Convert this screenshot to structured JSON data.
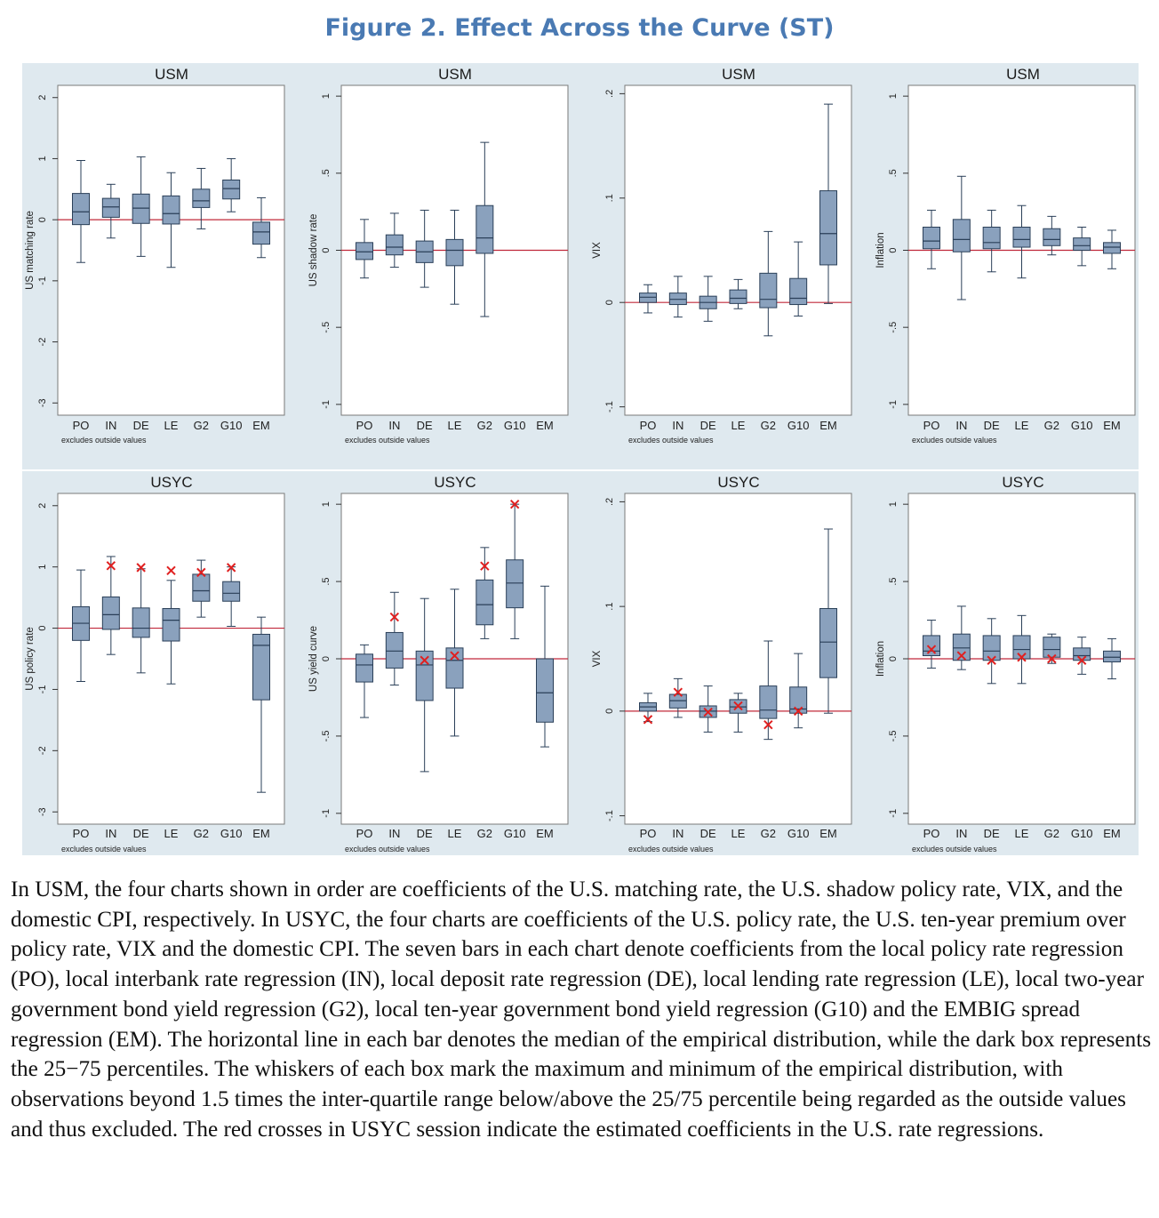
{
  "figure": {
    "title": "Figure 2. Effect Across the Curve (ST)",
    "caption": "In USM, the four charts shown in order are coefficients of the U.S. matching rate, the U.S. shadow policy rate, VIX, and the domestic CPI, respectively. In USYC, the four charts are coefficients of the U.S. policy rate, the U.S. ten-year premium over policy rate, VIX and the domestic CPI. The seven bars in each chart denote coefficients from the local policy rate regression (PO), local interbank rate regression (IN), local deposit rate regression (DE), local lending rate regression (LE), local two-year government bond yield regression (G2), local ten-year government bond yield regression (G10) and the EMBIG spread regression (EM). The horizontal line in each bar denotes the median of the empirical distribution, while the dark box represents the 25−75 percentiles. The whiskers of each box mark the maximum and minimum of the empirical distribution, with observations beyond 1.5 times the inter-quartile range below/above the 25/75 percentile being regarded as the outside values and thus excluded. The red crosses in USYC session indicate the estimated coefficients in the U.S. rate regressions."
  },
  "colors": {
    "panel_background": "#dfe9ef",
    "box_fill": "#8aa1bd",
    "box_stroke": "#2a3f58",
    "zero_line": "#c0283a",
    "marker": "#e02020",
    "title_color": "#4a7ab3"
  },
  "chart_data": [
    {
      "type": "box",
      "title": "USM",
      "ylabel": "US matching rate",
      "note": "excludes outside values",
      "categories": [
        "PO",
        "IN",
        "DE",
        "LE",
        "G2",
        "G10",
        "EM"
      ],
      "ylim": [
        -3.2,
        2.2
      ],
      "yticks": [
        -3,
        -2,
        -1,
        0,
        1,
        2
      ],
      "boxes": [
        {
          "min": -0.7,
          "q1": -0.08,
          "median": 0.13,
          "q3": 0.43,
          "max": 0.97
        },
        {
          "min": -0.3,
          "q1": 0.04,
          "median": 0.21,
          "q3": 0.35,
          "max": 0.58
        },
        {
          "min": -0.6,
          "q1": -0.06,
          "median": 0.19,
          "q3": 0.42,
          "max": 1.03
        },
        {
          "min": -0.78,
          "q1": -0.07,
          "median": 0.1,
          "q3": 0.39,
          "max": 0.77
        },
        {
          "min": -0.15,
          "q1": 0.2,
          "median": 0.31,
          "q3": 0.5,
          "max": 0.84
        },
        {
          "min": 0.13,
          "q1": 0.34,
          "median": 0.51,
          "q3": 0.65,
          "max": 1.0
        },
        {
          "min": -0.62,
          "q1": -0.4,
          "median": -0.2,
          "q3": -0.04,
          "max": 0.36
        }
      ]
    },
    {
      "type": "box",
      "title": "USM",
      "ylabel": "US shadow rate",
      "note": "excludes outside values",
      "categories": [
        "PO",
        "IN",
        "DE",
        "LE",
        "G2",
        "G10",
        "EM"
      ],
      "ylim": [
        -1.07,
        1.07
      ],
      "yticks": [
        -1,
        -0.5,
        0,
        0.5,
        1
      ],
      "boxes": [
        {
          "min": -0.18,
          "q1": -0.06,
          "median": -0.01,
          "q3": 0.05,
          "max": 0.2
        },
        {
          "min": -0.11,
          "q1": -0.03,
          "median": 0.02,
          "q3": 0.1,
          "max": 0.24
        },
        {
          "min": -0.24,
          "q1": -0.08,
          "median": -0.01,
          "q3": 0.06,
          "max": 0.26
        },
        {
          "min": -0.35,
          "q1": -0.1,
          "median": 0.0,
          "q3": 0.07,
          "max": 0.26
        },
        {
          "min": -0.43,
          "q1": -0.02,
          "median": 0.08,
          "q3": 0.29,
          "max": 0.7
        },
        null,
        null
      ]
    },
    {
      "type": "box",
      "title": "USM",
      "ylabel": "VIX",
      "note": "excludes outside values",
      "categories": [
        "PO",
        "IN",
        "DE",
        "LE",
        "G2",
        "G10",
        "EM"
      ],
      "ylim": [
        -0.108,
        0.208
      ],
      "yticks": [
        -0.1,
        0,
        0.1,
        0.2
      ],
      "boxes": [
        {
          "min": -0.01,
          "q1": 0.0,
          "median": 0.005,
          "q3": 0.009,
          "max": 0.017
        },
        {
          "min": -0.014,
          "q1": -0.002,
          "median": 0.003,
          "q3": 0.009,
          "max": 0.025
        },
        {
          "min": -0.018,
          "q1": -0.006,
          "median": 0.0,
          "q3": 0.006,
          "max": 0.025
        },
        {
          "min": -0.006,
          "q1": -0.001,
          "median": 0.004,
          "q3": 0.012,
          "max": 0.022
        },
        {
          "min": -0.032,
          "q1": -0.005,
          "median": 0.003,
          "q3": 0.028,
          "max": 0.068
        },
        {
          "min": -0.013,
          "q1": -0.002,
          "median": 0.004,
          "q3": 0.023,
          "max": 0.058
        },
        {
          "min": -0.001,
          "q1": 0.036,
          "median": 0.066,
          "q3": 0.107,
          "max": 0.19
        }
      ]
    },
    {
      "type": "box",
      "title": "USM",
      "ylabel": "Inflation",
      "note": "excludes outside values",
      "categories": [
        "PO",
        "IN",
        "DE",
        "LE",
        "G2",
        "G10",
        "EM"
      ],
      "ylim": [
        -1.07,
        1.07
      ],
      "yticks": [
        -1,
        -0.5,
        0,
        0.5,
        1
      ],
      "boxes": [
        {
          "min": -0.12,
          "q1": 0.01,
          "median": 0.06,
          "q3": 0.15,
          "max": 0.26
        },
        {
          "min": -0.32,
          "q1": -0.01,
          "median": 0.07,
          "q3": 0.2,
          "max": 0.48
        },
        {
          "min": -0.14,
          "q1": 0.01,
          "median": 0.05,
          "q3": 0.15,
          "max": 0.26
        },
        {
          "min": -0.18,
          "q1": 0.02,
          "median": 0.07,
          "q3": 0.15,
          "max": 0.29
        },
        {
          "min": -0.03,
          "q1": 0.03,
          "median": 0.07,
          "q3": 0.14,
          "max": 0.22
        },
        {
          "min": -0.1,
          "q1": 0.0,
          "median": 0.03,
          "q3": 0.08,
          "max": 0.15
        },
        {
          "min": -0.12,
          "q1": -0.02,
          "median": 0.02,
          "q3": 0.05,
          "max": 0.13
        }
      ]
    },
    {
      "type": "box",
      "title": "USYC",
      "ylabel": "US policy rate",
      "note": "excludes outside values",
      "categories": [
        "PO",
        "IN",
        "DE",
        "LE",
        "G2",
        "G10",
        "EM"
      ],
      "ylim": [
        -3.2,
        2.2
      ],
      "yticks": [
        -3,
        -2,
        -1,
        0,
        1,
        2
      ],
      "boxes": [
        {
          "min": -0.87,
          "q1": -0.2,
          "median": 0.08,
          "q3": 0.35,
          "max": 0.95,
          "estimate": null
        },
        {
          "min": -0.43,
          "q1": -0.02,
          "median": 0.22,
          "q3": 0.51,
          "max": 1.17,
          "estimate": 1.02
        },
        {
          "min": -0.73,
          "q1": -0.15,
          "median": 0.0,
          "q3": 0.33,
          "max": 0.97,
          "estimate": 0.99
        },
        {
          "min": -0.91,
          "q1": -0.21,
          "median": 0.13,
          "q3": 0.32,
          "max": 0.78,
          "estimate": 0.94
        },
        {
          "min": 0.18,
          "q1": 0.44,
          "median": 0.61,
          "q3": 0.88,
          "max": 1.11,
          "estimate": 0.91
        },
        {
          "min": 0.03,
          "q1": 0.44,
          "median": 0.57,
          "q3": 0.76,
          "max": 1.0,
          "estimate": 0.99
        },
        {
          "min": -2.68,
          "q1": -1.17,
          "median": -0.28,
          "q3": -0.1,
          "max": 0.18,
          "estimate": null
        }
      ]
    },
    {
      "type": "box",
      "title": "USYC",
      "ylabel": "US yield curve",
      "note": "excludes outside values",
      "categories": [
        "PO",
        "IN",
        "DE",
        "LE",
        "G2",
        "G10",
        "EM"
      ],
      "ylim": [
        -1.07,
        1.07
      ],
      "yticks": [
        -1,
        -0.5,
        0,
        0.5,
        1
      ],
      "boxes": [
        {
          "min": -0.38,
          "q1": -0.15,
          "median": -0.04,
          "q3": 0.03,
          "max": 0.09,
          "estimate": null
        },
        {
          "min": -0.17,
          "q1": -0.06,
          "median": 0.05,
          "q3": 0.17,
          "max": 0.43,
          "estimate": 0.27
        },
        {
          "min": -0.73,
          "q1": -0.27,
          "median": -0.04,
          "q3": 0.05,
          "max": 0.39,
          "estimate": -0.01
        },
        {
          "min": -0.5,
          "q1": -0.19,
          "median": -0.01,
          "q3": 0.07,
          "max": 0.45,
          "estimate": 0.02
        },
        {
          "min": 0.13,
          "q1": 0.22,
          "median": 0.35,
          "q3": 0.51,
          "max": 0.72,
          "estimate": 0.6
        },
        {
          "min": 0.13,
          "q1": 0.33,
          "median": 0.49,
          "q3": 0.64,
          "max": 1.0,
          "estimate": 1.0
        },
        {
          "min": -0.57,
          "q1": -0.41,
          "median": -0.22,
          "q3": 0.0,
          "max": 0.47,
          "estimate": null
        }
      ]
    },
    {
      "type": "box",
      "title": "USYC",
      "ylabel": "VIX",
      "note": "excludes outside values",
      "categories": [
        "PO",
        "IN",
        "DE",
        "LE",
        "G2",
        "G10",
        "EM"
      ],
      "ylim": [
        -0.108,
        0.208
      ],
      "yticks": [
        -0.1,
        0,
        0.1,
        0.2
      ],
      "boxes": [
        {
          "min": -0.01,
          "q1": 0.0,
          "median": 0.004,
          "q3": 0.008,
          "max": 0.017,
          "estimate": -0.008
        },
        {
          "min": -0.006,
          "q1": 0.003,
          "median": 0.01,
          "q3": 0.016,
          "max": 0.031,
          "estimate": 0.018
        },
        {
          "min": -0.02,
          "q1": -0.006,
          "median": 0.0,
          "q3": 0.005,
          "max": 0.024,
          "estimate": -0.001
        },
        {
          "min": -0.02,
          "q1": -0.002,
          "median": 0.004,
          "q3": 0.011,
          "max": 0.017,
          "estimate": 0.005
        },
        {
          "min": -0.027,
          "q1": -0.007,
          "median": 0.001,
          "q3": 0.024,
          "max": 0.067,
          "estimate": -0.013
        },
        {
          "min": -0.016,
          "q1": -0.002,
          "median": 0.002,
          "q3": 0.023,
          "max": 0.055,
          "estimate": 0.0
        },
        {
          "min": -0.002,
          "q1": 0.032,
          "median": 0.066,
          "q3": 0.098,
          "max": 0.174,
          "estimate": null
        }
      ]
    },
    {
      "type": "box",
      "title": "USYC",
      "ylabel": "Inflation",
      "note": "excludes outside values",
      "categories": [
        "PO",
        "IN",
        "DE",
        "LE",
        "G2",
        "G10",
        "EM"
      ],
      "ylim": [
        -1.07,
        1.07
      ],
      "yticks": [
        -1,
        -0.5,
        0,
        0.5,
        1
      ],
      "boxes": [
        {
          "min": -0.06,
          "q1": 0.02,
          "median": 0.05,
          "q3": 0.15,
          "max": 0.25,
          "estimate": 0.06
        },
        {
          "min": -0.07,
          "q1": -0.01,
          "median": 0.07,
          "q3": 0.16,
          "max": 0.34,
          "estimate": 0.02
        },
        {
          "min": -0.16,
          "q1": -0.01,
          "median": 0.05,
          "q3": 0.15,
          "max": 0.26,
          "estimate": -0.01
        },
        {
          "min": -0.16,
          "q1": 0.0,
          "median": 0.06,
          "q3": 0.15,
          "max": 0.28,
          "estimate": 0.01
        },
        {
          "min": -0.03,
          "q1": 0.01,
          "median": 0.06,
          "q3": 0.14,
          "max": 0.16,
          "estimate": 0.0
        },
        {
          "min": -0.1,
          "q1": -0.01,
          "median": 0.02,
          "q3": 0.07,
          "max": 0.14,
          "estimate": -0.01
        },
        {
          "min": -0.13,
          "q1": -0.02,
          "median": 0.01,
          "q3": 0.05,
          "max": 0.13,
          "estimate": null
        }
      ]
    }
  ]
}
